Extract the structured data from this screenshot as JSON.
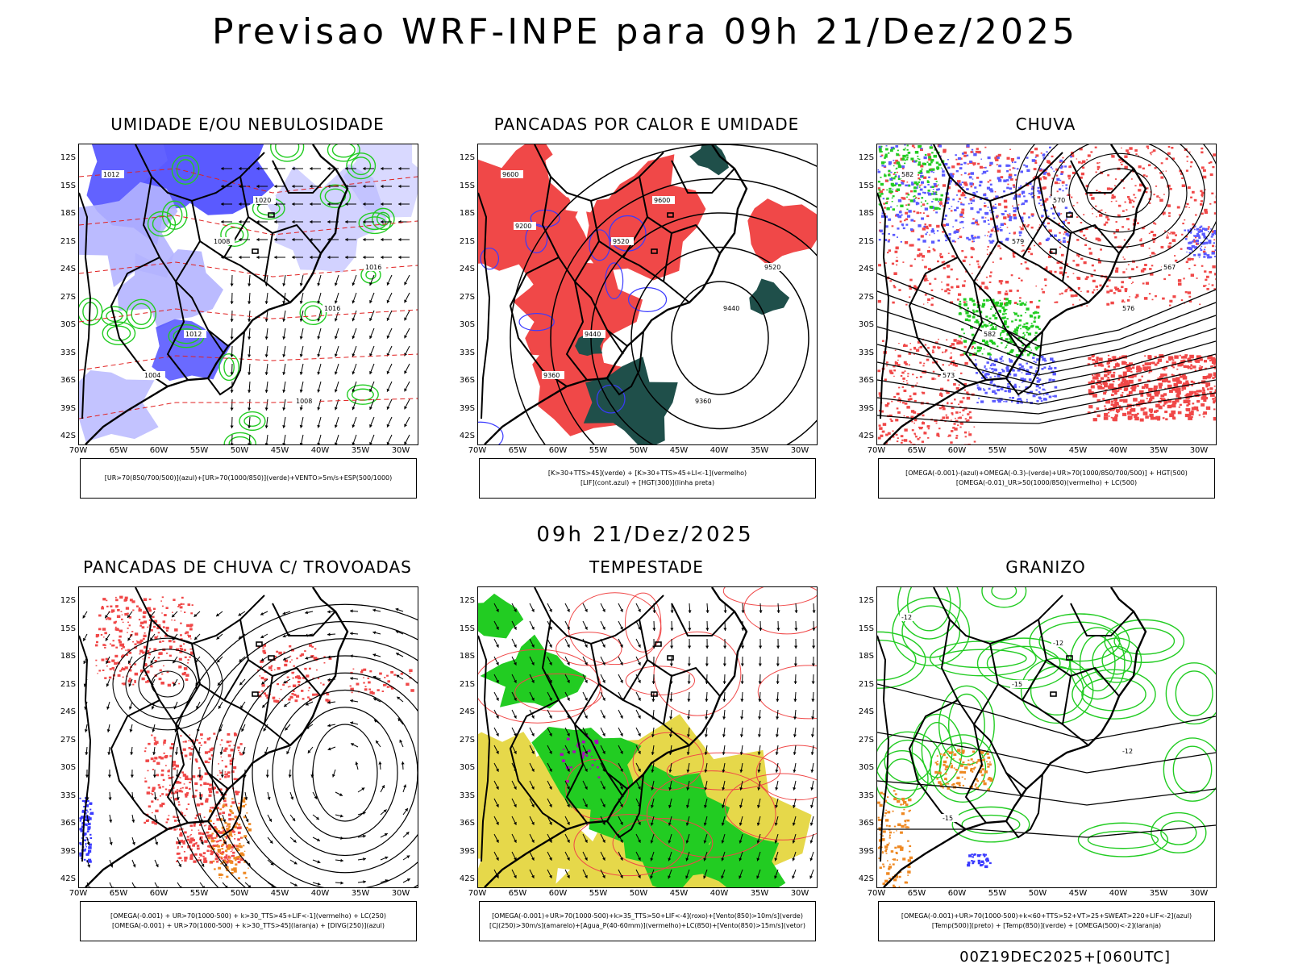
{
  "header": {
    "title": "Previsao WRF-INPE  para 09h 21/Dez/2025",
    "mid_title": "09h 21/Dez/2025",
    "footer": "00Z19DEC2025+[060UTC]"
  },
  "axes": {
    "lat_labels": [
      "12S",
      "15S",
      "18S",
      "21S",
      "24S",
      "27S",
      "30S",
      "33S",
      "36S",
      "39S",
      "42S"
    ],
    "lon_labels": [
      "70W",
      "65W",
      "60W",
      "55W",
      "50W",
      "45W",
      "40W",
      "35W",
      "30W"
    ]
  },
  "panels": [
    {
      "title": "UMIDADE E/OU NEBULOSIDADE",
      "legend": [
        "[UR>70(850/700/500)](azul)+[UR>70(1000/850)](verde)+VENTO>5m/s+ESP(500/1000)"
      ],
      "labels": [
        "1012",
        "1008",
        "1016",
        "1004",
        "1020",
        "1016",
        "1012",
        "1008"
      ]
    },
    {
      "title": "PANCADAS POR CALOR E UMIDADE",
      "legend": [
        "[K>30+TTS>45](verde) + [K>30+TTS>45+LI<-1](vermelho)",
        "[LIF](cont.azul) + [HGT(300)](linha preta)"
      ],
      "labels": [
        "9600",
        "9520",
        "9440",
        "9360",
        "9600",
        "9520",
        "9440",
        "9360",
        "9200"
      ]
    },
    {
      "title": "CHUVA",
      "legend": [
        "[OMEGA(-0.001)-(azul)+OMEGA(-0.3)-(verde)+UR>70(1000/850/700/500)] + HGT(500)",
        "[OMEGA(-0.01)_UR>50(1000/850)(vermelho) + LC(500)"
      ],
      "labels": [
        "582",
        "579",
        "576",
        "573",
        "570",
        "567",
        "582"
      ]
    },
    {
      "title": "PANCADAS DE CHUVA C/ TROVOADAS",
      "legend": [
        "[OMEGA(-0.001) + UR>70(1000-500) + k>30_TTS>45+LIF<-1](vermelho) + LC(250)",
        "[OMEGA(-0.001) + UR>70(1000-500) + k>30_TTS>45](laranja) + [DIVG(250)](azul)"
      ],
      "labels": []
    },
    {
      "title": "TEMPESTADE",
      "legend": [
        "[OMEGA(-0.001)+UR>70(1000-500)+k>35_TTS>50+LIF<-4](roxo)+[Vento(850)>10m/s](verde)",
        "[CJ(250)>30m/s](amarelo)+[Agua_P(40-60mm)](vermelho)+LC(850)+[Vento(850)>15m/s](vetor)"
      ],
      "labels": []
    },
    {
      "title": "GRANIZO",
      "legend": [
        "[OMEGA(-0.001)+UR>70(1000-500)+k<60+TTS>52+VT>25+SWEAT>220+LIF<-2](azul)",
        "[Temp(500)](preto) + [Temp(850)](verde) + [OMEGA(500)<-2](laranja)"
      ],
      "labels": [
        "-12",
        "-15",
        "-12",
        "-15",
        "-12"
      ]
    }
  ],
  "colors": {
    "blue": "#5a5aff",
    "lightblue": "#b4b4ff",
    "green": "#22cc22",
    "red": "#f04848",
    "darkgreen": "#1f4f4a",
    "yellow": "#e6d84a",
    "orange": "#ee8822",
    "purple": "#b000c0"
  }
}
